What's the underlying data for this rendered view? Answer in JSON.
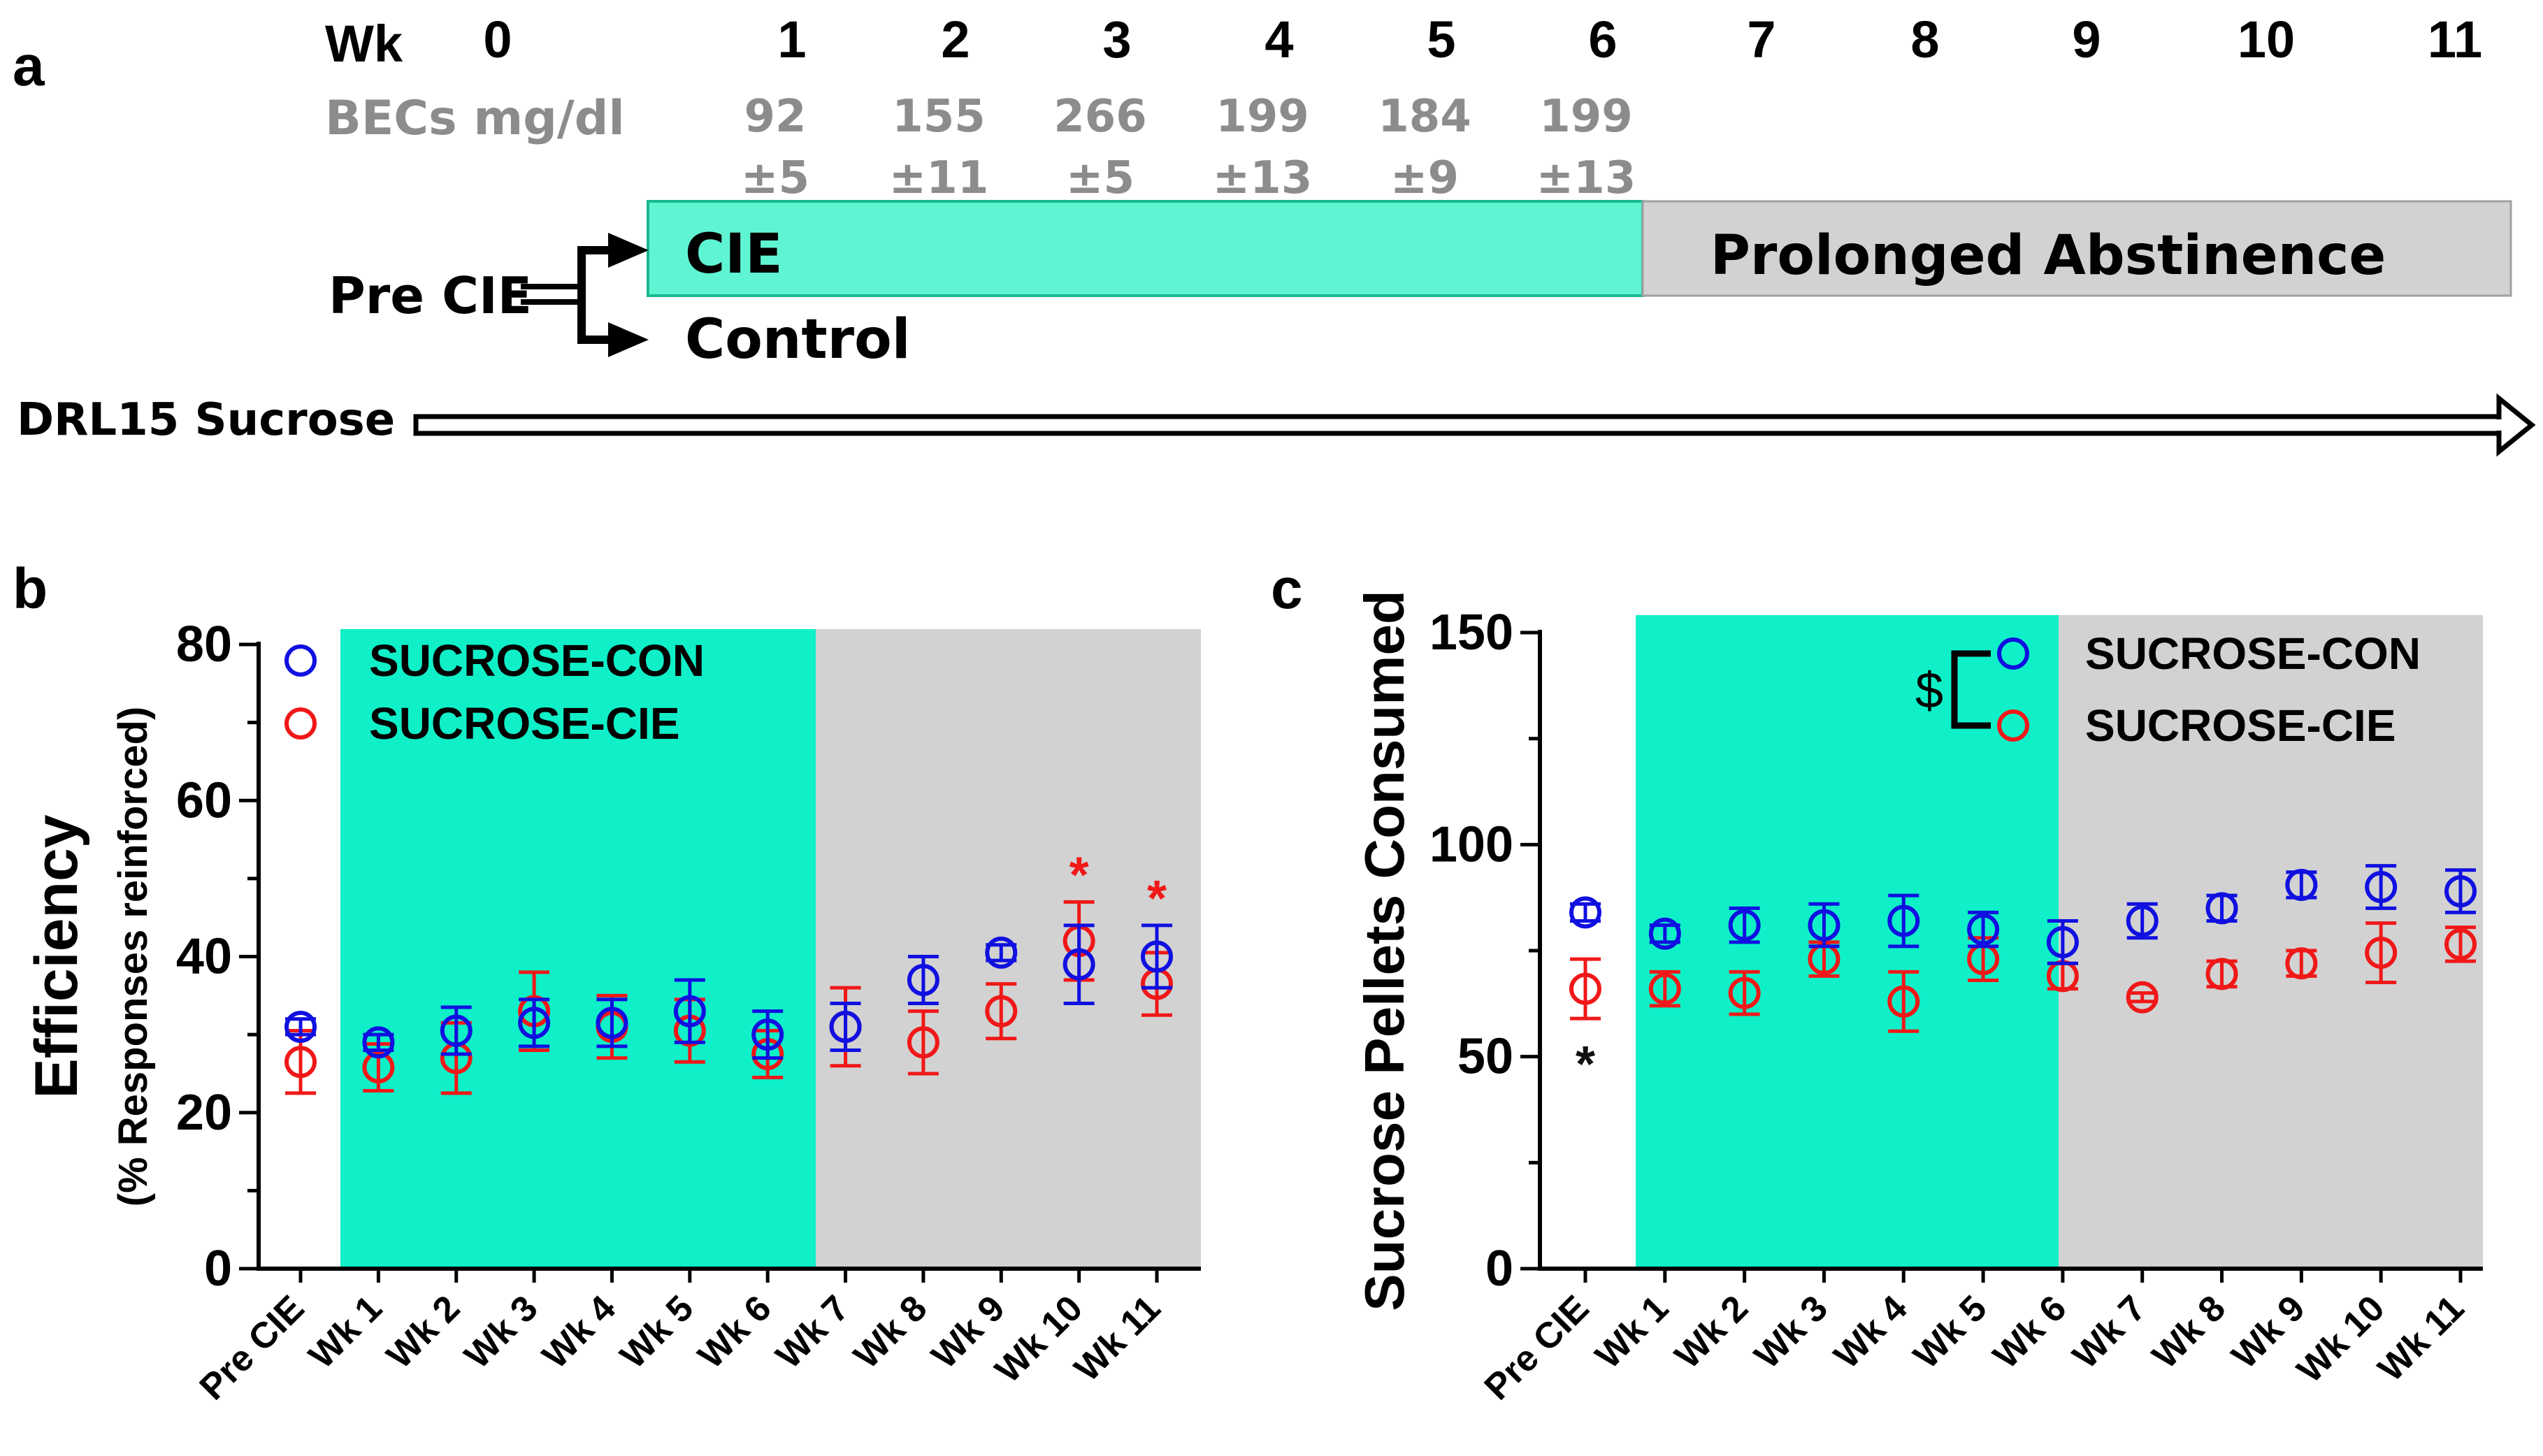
{
  "panel_a": {
    "label": "a",
    "wk_label": "Wk",
    "weeks": [
      "0",
      "1",
      "2",
      "3",
      "4",
      "5",
      "6",
      "7",
      "8",
      "9",
      "10",
      "11"
    ],
    "bec_label": "BECs mg/dl",
    "bec_means": [
      "92",
      "155",
      "266",
      "199",
      "184",
      "199"
    ],
    "bec_errors": [
      "±5",
      "±11",
      "±5",
      "±13",
      "±9",
      "±13"
    ],
    "cie_label": "CIE",
    "abstinence_label": "Prolonged Abstinence",
    "pre_label": "Pre CIE",
    "control_label": "Control",
    "drl_label": "DRL15 Sucrose",
    "colors": {
      "cie": "#5ff5d2",
      "cie_border": "#19b98f",
      "abstinence": "#d2d2d2"
    }
  },
  "chart_data": [
    {
      "panel": "b",
      "type": "scatter",
      "ylabel": "Efficiency",
      "ylabel2": "(% Responses reinforced)",
      "ylim": [
        0,
        80
      ],
      "yticks": [
        "0",
        "20",
        "40",
        "60",
        "80"
      ],
      "categories": [
        "Pre CIE",
        "Wk 1",
        "Wk 2",
        "Wk 3",
        "Wk 4",
        "Wk 5",
        "Wk 6",
        "Wk 7",
        "Wk 8",
        "Wk 9",
        "Wk 10",
        "Wk 11"
      ],
      "shade": {
        "cie": [
          1,
          6
        ],
        "abstinence": [
          7,
          11
        ]
      },
      "series": [
        {
          "name": "SUCROSE-CON",
          "color": "#1010e0",
          "values": [
            31,
            29,
            30.5,
            31.5,
            31.5,
            33,
            30,
            31,
            37,
            40.5,
            39,
            40
          ],
          "errors": [
            1,
            1,
            3,
            3,
            3,
            4,
            3,
            3,
            3,
            1,
            5,
            4
          ]
        },
        {
          "name": "SUCROSE-CIE",
          "color": "#f01818",
          "values": [
            26.5,
            25.8,
            27,
            33,
            31,
            30.5,
            27.5,
            31,
            29,
            33,
            42,
            36.5
          ],
          "errors": [
            4,
            3,
            4.5,
            5,
            4,
            4,
            3,
            5,
            4,
            3.5,
            5,
            4
          ]
        }
      ],
      "significance": [
        {
          "category": "Wk 10",
          "mark": "*",
          "color": "#f01818"
        },
        {
          "category": "Wk 11",
          "mark": "*",
          "color": "#f01818"
        }
      ]
    },
    {
      "panel": "c",
      "type": "scatter",
      "ylabel": "Sucrose Pellets Consumed",
      "ylim": [
        0,
        150
      ],
      "yticks": [
        "0",
        "50",
        "100",
        "150"
      ],
      "categories": [
        "Pre CIE",
        "Wk 1",
        "Wk 2",
        "Wk 3",
        "Wk 4",
        "Wk 5",
        "Wk 6",
        "Wk 7",
        "Wk 8",
        "Wk 9",
        "Wk 10",
        "Wk 11"
      ],
      "shade": {
        "cie": [
          1,
          6
        ],
        "abstinence": [
          7,
          11
        ]
      },
      "series": [
        {
          "name": "SUCROSE-CON",
          "color": "#1010e0",
          "values": [
            84,
            79,
            81,
            81,
            82,
            80,
            77,
            82,
            85,
            90.5,
            90,
            89
          ],
          "errors": [
            2,
            2,
            4,
            5,
            6,
            4,
            5,
            4,
            3,
            3,
            5,
            5
          ]
        },
        {
          "name": "SUCROSE-CIE",
          "color": "#f01818",
          "values": [
            66,
            66,
            65,
            73,
            63,
            73,
            69,
            64,
            69.5,
            72,
            74.5,
            76.5
          ],
          "errors": [
            7,
            4,
            5,
            4,
            7,
            5,
            3,
            1,
            3,
            3,
            7,
            4
          ]
        }
      ],
      "significance": [
        {
          "category": "Pre CIE",
          "mark": "*",
          "color": "#111111"
        }
      ],
      "bracket_label": "$"
    }
  ],
  "panel_b": {
    "label": "b"
  },
  "panel_c": {
    "label": "c"
  }
}
